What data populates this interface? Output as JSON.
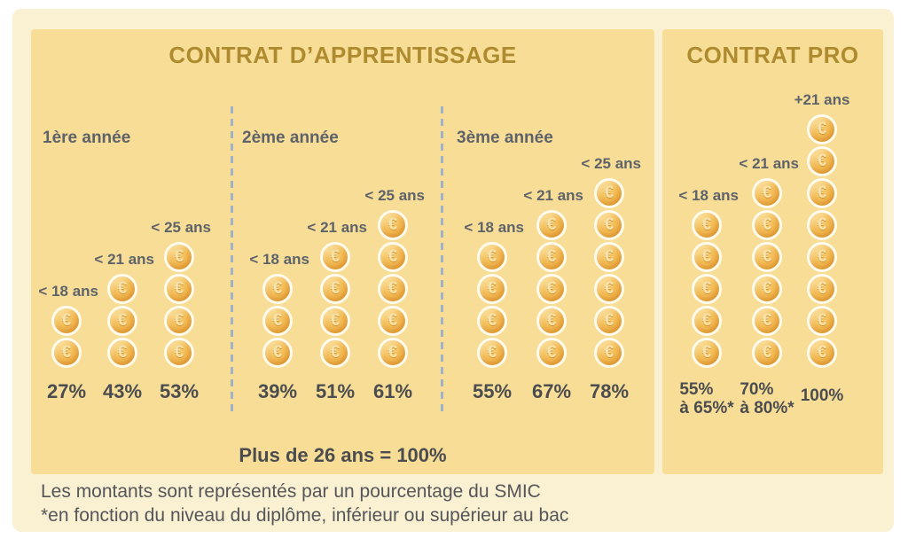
{
  "icons": {
    "euro": "€"
  },
  "colors": {
    "page_background": "#FFFFFF",
    "canvas_background": "#FAF0D2",
    "panel_background": "#F8DD96",
    "title_gold": "#AE8B2F",
    "label_gray": "#5E6269",
    "percent_gray": "#4A4C4F",
    "separator_blue": "#9EB2C9",
    "coin_gold": "#F0B04A",
    "coin_ring": "#FFFCEF"
  },
  "apprentissage": {
    "title": "CONTRAT D’APPRENTISSAGE",
    "note": "Plus de 26 ans = 100%",
    "groups": [
      {
        "label": "1ère année",
        "stacks": [
          {
            "age": "< 18 ans",
            "coins": 2,
            "percent": [
              "27%"
            ]
          },
          {
            "age": "< 21 ans",
            "coins": 3,
            "percent": [
              "43%"
            ]
          },
          {
            "age": "< 25 ans",
            "coins": 4,
            "percent": [
              "53%"
            ]
          }
        ]
      },
      {
        "label": "2ème année",
        "stacks": [
          {
            "age": "< 18 ans",
            "coins": 3,
            "percent": [
              "39%"
            ]
          },
          {
            "age": "< 21 ans",
            "coins": 4,
            "percent": [
              "51%"
            ]
          },
          {
            "age": "< 25 ans",
            "coins": 5,
            "percent": [
              "61%"
            ]
          }
        ]
      },
      {
        "label": "3ème année",
        "stacks": [
          {
            "age": "< 18 ans",
            "coins": 4,
            "percent": [
              "55%"
            ]
          },
          {
            "age": "< 21 ans",
            "coins": 5,
            "percent": [
              "67%"
            ]
          },
          {
            "age": "< 25 ans",
            "coins": 6,
            "percent": [
              "78%"
            ]
          }
        ]
      }
    ]
  },
  "pro": {
    "title": "CONTRAT PRO",
    "stacks": [
      {
        "age": "< 18 ans",
        "coins": 5,
        "percent": [
          "55%",
          "à 65%*"
        ]
      },
      {
        "age": "< 21 ans",
        "coins": 6,
        "percent": [
          "70%",
          "à 80%*"
        ]
      },
      {
        "age": "+21 ans",
        "coins": 8,
        "percent": [
          "100%"
        ],
        "label_position": "above"
      }
    ]
  },
  "footer": {
    "line1": "Les montants sont représentés par un pourcentage du SMIC",
    "line2": "*en fonction du niveau du diplôme, inférieur ou supérieur au bac"
  },
  "chart_data": [
    {
      "type": "bar",
      "subtype": "pictogram-coin-stacks",
      "title": "CONTRAT D’APPRENTISSAGE",
      "ylabel": "% du SMIC",
      "categories": [
        "< 18 ans",
        "< 21 ans",
        "< 25 ans"
      ],
      "series": [
        {
          "name": "1ère année",
          "values": [
            27,
            43,
            53
          ],
          "coin_counts": [
            2,
            3,
            4
          ]
        },
        {
          "name": "2ème année",
          "values": [
            39,
            51,
            61
          ],
          "coin_counts": [
            3,
            4,
            5
          ]
        },
        {
          "name": "3ème année",
          "values": [
            55,
            67,
            78
          ],
          "coin_counts": [
            4,
            5,
            6
          ]
        }
      ],
      "annotations": [
        "Plus de 26 ans = 100%"
      ],
      "legend_position": "none",
      "grid": false
    },
    {
      "type": "bar",
      "subtype": "pictogram-coin-stacks",
      "title": "CONTRAT PRO",
      "ylabel": "% du SMIC",
      "categories": [
        "< 18 ans",
        "< 21 ans",
        "+21 ans"
      ],
      "series": [
        {
          "name": "Contrat pro",
          "values_min": [
            55,
            70,
            100
          ],
          "values_max": [
            65,
            80,
            100
          ],
          "value_labels": [
            "55% à 65%*",
            "70% à 80%*",
            "100%"
          ],
          "coin_counts": [
            5,
            6,
            8
          ]
        }
      ],
      "legend_position": "none",
      "grid": false
    }
  ]
}
